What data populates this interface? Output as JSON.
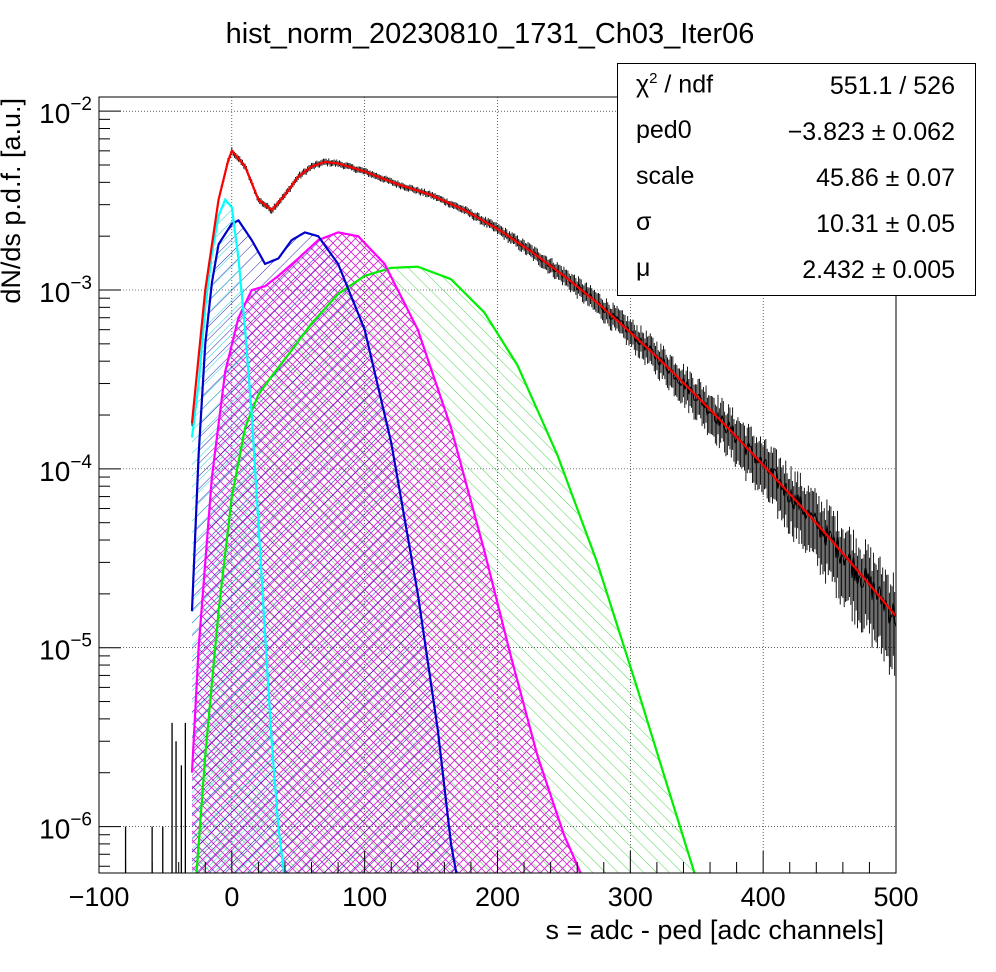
{
  "chart_data": {
    "type": "line",
    "title": "hist_norm_20230810_1731_Ch03_Iter06",
    "xlabel": "s = adc - ped [adc channels]",
    "ylabel": "dN/ds p.d.f. [a.u.]",
    "xlim": [
      -100,
      500
    ],
    "ylim": [
      5.5e-07,
      0.012
    ],
    "yscale": "log",
    "grid": true,
    "x_ticks": [
      "−100",
      "0",
      "100",
      "200",
      "300",
      "400",
      "500"
    ],
    "y_ticks": [
      {
        "base": "10",
        "exp": "−2"
      },
      {
        "base": "10",
        "exp": "−3"
      },
      {
        "base": "10",
        "exp": "−4"
      },
      {
        "base": "10",
        "exp": "−5"
      },
      {
        "base": "10",
        "exp": "−6"
      }
    ],
    "series": [
      {
        "key": "data",
        "kind": "histogram",
        "color": "#000000",
        "points": [
          [
            -30,
            0.00018
          ],
          [
            -20,
            0.001
          ],
          [
            -10,
            0.0032
          ],
          [
            -3,
            0.0052
          ],
          [
            0,
            0.006
          ],
          [
            10,
            0.0049
          ],
          [
            20,
            0.0032
          ],
          [
            30,
            0.0028
          ],
          [
            40,
            0.0034
          ],
          [
            50,
            0.0043
          ],
          [
            60,
            0.0049
          ],
          [
            70,
            0.0052
          ],
          [
            80,
            0.0051
          ],
          [
            100,
            0.0046
          ],
          [
            125,
            0.0039
          ],
          [
            150,
            0.0034
          ],
          [
            175,
            0.0028
          ],
          [
            200,
            0.0022
          ],
          [
            225,
            0.00165
          ],
          [
            250,
            0.0012
          ],
          [
            275,
            0.00085
          ],
          [
            300,
            0.00058
          ],
          [
            325,
            0.00039
          ],
          [
            350,
            0.000255
          ],
          [
            375,
            0.000165
          ],
          [
            400,
            0.000105
          ],
          [
            425,
            6.6e-05
          ],
          [
            450,
            4.1e-05
          ],
          [
            475,
            2.5e-05
          ],
          [
            500,
            1.5e-05
          ]
        ]
      },
      {
        "key": "fit",
        "kind": "line",
        "color": "#ff0000",
        "points": [
          [
            -30,
            0.00018
          ],
          [
            -20,
            0.001
          ],
          [
            -10,
            0.0032
          ],
          [
            -3,
            0.0052
          ],
          [
            0,
            0.006
          ],
          [
            10,
            0.0049
          ],
          [
            20,
            0.0032
          ],
          [
            30,
            0.0028
          ],
          [
            40,
            0.0034
          ],
          [
            50,
            0.0043
          ],
          [
            60,
            0.0049
          ],
          [
            70,
            0.0052
          ],
          [
            80,
            0.0051
          ],
          [
            100,
            0.0046
          ],
          [
            125,
            0.0039
          ],
          [
            150,
            0.0034
          ],
          [
            175,
            0.0028
          ],
          [
            200,
            0.0022
          ],
          [
            225,
            0.00165
          ],
          [
            250,
            0.0012
          ],
          [
            275,
            0.00085
          ],
          [
            300,
            0.00058
          ],
          [
            325,
            0.00039
          ],
          [
            350,
            0.000255
          ],
          [
            375,
            0.000165
          ],
          [
            400,
            0.000105
          ],
          [
            425,
            6.6e-05
          ],
          [
            450,
            4.1e-05
          ],
          [
            475,
            2.5e-05
          ],
          [
            500,
            1.5e-05
          ]
        ]
      },
      {
        "key": "comp0",
        "kind": "hatched",
        "color": "#00ffff",
        "points": [
          [
            -30,
            0.00015
          ],
          [
            -25,
            0.0003
          ],
          [
            -20,
            0.0008
          ],
          [
            -15,
            0.0016
          ],
          [
            -10,
            0.0026
          ],
          [
            -5,
            0.0032
          ],
          [
            0,
            0.0029
          ],
          [
            5,
            0.0015
          ],
          [
            10,
            0.0006
          ],
          [
            15,
            0.0002
          ],
          [
            20,
            5e-05
          ],
          [
            25,
            1.2e-05
          ],
          [
            30,
            3e-06
          ],
          [
            35,
            1e-06
          ],
          [
            40,
            5e-07
          ]
        ]
      },
      {
        "key": "comp1",
        "kind": "hatched",
        "color": "#0000cc",
        "points": [
          [
            -30,
            1.6e-05
          ],
          [
            -25,
            0.00012
          ],
          [
            -20,
            0.0005
          ],
          [
            -15,
            0.0011
          ],
          [
            -10,
            0.0018
          ],
          [
            0,
            0.00235
          ],
          [
            5,
            0.00245
          ],
          [
            15,
            0.0019
          ],
          [
            25,
            0.0014
          ],
          [
            35,
            0.0015
          ],
          [
            45,
            0.0019
          ],
          [
            55,
            0.0021
          ],
          [
            65,
            0.002
          ],
          [
            80,
            0.0014
          ],
          [
            100,
            0.0006
          ],
          [
            120,
            0.00014
          ],
          [
            140,
            2e-05
          ],
          [
            155,
            3.5e-06
          ],
          [
            165,
            8e-07
          ],
          [
            170,
            5e-07
          ]
        ]
      },
      {
        "key": "comp2",
        "kind": "hatched",
        "color": "#ff00ff",
        "points": [
          [
            -30,
            2e-06
          ],
          [
            -25,
            1e-05
          ],
          [
            -15,
            9e-05
          ],
          [
            -5,
            0.00035
          ],
          [
            5,
            0.0007
          ],
          [
            15,
            0.001
          ],
          [
            25,
            0.00105
          ],
          [
            35,
            0.0012
          ],
          [
            50,
            0.0015
          ],
          [
            65,
            0.0019
          ],
          [
            80,
            0.0021
          ],
          [
            95,
            0.002
          ],
          [
            115,
            0.0014
          ],
          [
            140,
            0.0006
          ],
          [
            165,
            0.00017
          ],
          [
            190,
            3.5e-05
          ],
          [
            210,
            9e-06
          ],
          [
            230,
            2.5e-06
          ],
          [
            250,
            9e-07
          ],
          [
            265,
            5e-07
          ]
        ]
      },
      {
        "key": "comp3",
        "kind": "hatched",
        "color": "#00ee00",
        "points": [
          [
            -27,
            5e-07
          ],
          [
            -20,
            2.5e-06
          ],
          [
            -10,
            1.6e-05
          ],
          [
            0,
            7e-05
          ],
          [
            10,
            0.00017
          ],
          [
            20,
            0.00026
          ],
          [
            30,
            0.00033
          ],
          [
            45,
            0.00046
          ],
          [
            60,
            0.00065
          ],
          [
            80,
            0.00095
          ],
          [
            100,
            0.0012
          ],
          [
            120,
            0.00133
          ],
          [
            140,
            0.00135
          ],
          [
            165,
            0.00115
          ],
          [
            190,
            0.00075
          ],
          [
            215,
            0.00038
          ],
          [
            245,
            0.00012
          ],
          [
            275,
            3e-05
          ],
          [
            305,
            6e-06
          ],
          [
            330,
            1.5e-06
          ],
          [
            350,
            5e-07
          ]
        ]
      }
    ]
  },
  "stats": {
    "rows": [
      {
        "name": "χ",
        "sup": "2",
        "tail": " / ndf",
        "value": "551.1 / 526"
      },
      {
        "name": "ped0",
        "value": "−3.823 ± 0.062"
      },
      {
        "name": "scale",
        "value": "45.86 ± 0.07"
      },
      {
        "name": "σ",
        "value": "10.31 ± 0.05"
      },
      {
        "name": "μ",
        "value": "2.432 ± 0.005"
      }
    ]
  }
}
